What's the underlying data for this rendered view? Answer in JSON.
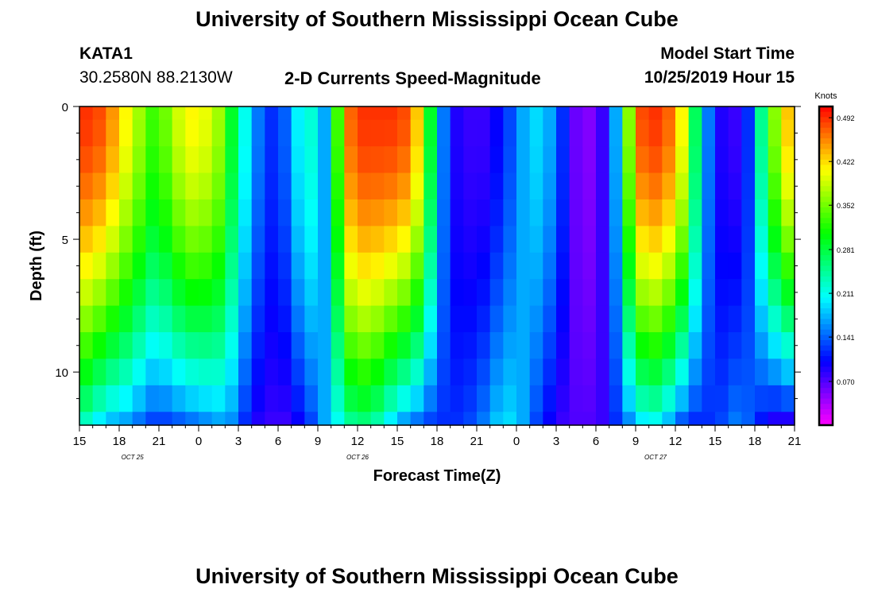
{
  "page": {
    "title_top": "University of Southern Mississippi Ocean Cube",
    "title_bottom": "University of Southern Mississippi Ocean Cube",
    "station": "KATA1",
    "coords": "30.2580N 88.2130W",
    "subtitle": "2-D Currents Speed-Magnitude",
    "model_label": "Model Start Time",
    "model_time": "10/25/2019 Hour 15"
  },
  "chart_data": {
    "type": "heatmap",
    "title": "2-D Currents Speed-Magnitude",
    "xlabel": "Forecast Time(Z)",
    "ylabel": "Depth (ft)",
    "colorbar_label": "Knots",
    "x_start_hour": 15,
    "x_hours_count": 54,
    "x_tick_labels": [
      "15",
      "18",
      "21",
      "0",
      "3",
      "6",
      "9",
      "12",
      "15",
      "18",
      "21",
      "0",
      "3",
      "6",
      "9",
      "12",
      "15",
      "18",
      "21"
    ],
    "date_labels": [
      {
        "label": "OCT 25",
        "hour": 19
      },
      {
        "label": "OCT 26",
        "hour": 36
      },
      {
        "label": "OCT 27",
        "hour": 58.5
      }
    ],
    "y_ticks": [
      0,
      5,
      10
    ],
    "ylim": [
      0,
      12
    ],
    "colorbar_ticks": [
      0.492,
      0.422,
      0.352,
      0.281,
      0.211,
      0.141,
      0.07
    ],
    "value_range": [
      0.0,
      0.51
    ],
    "depths": [
      0,
      1,
      2,
      3,
      4,
      5,
      6,
      7,
      8,
      9,
      10,
      11,
      12
    ],
    "surface_speed": [
      0.49,
      0.48,
      0.45,
      0.41,
      0.37,
      0.33,
      0.35,
      0.39,
      0.41,
      0.4,
      0.37,
      0.29,
      0.21,
      0.15,
      0.12,
      0.14,
      0.2,
      0.22,
      0.17,
      0.33,
      0.47,
      0.49,
      0.49,
      0.49,
      0.48,
      0.43,
      0.29,
      0.15,
      0.09,
      0.08,
      0.08,
      0.1,
      0.13,
      0.17,
      0.19,
      0.17,
      0.12,
      0.06,
      0.05,
      0.08,
      0.17,
      0.36,
      0.48,
      0.49,
      0.47,
      0.41,
      0.27,
      0.15,
      0.09,
      0.08,
      0.12,
      0.25,
      0.36,
      0.43
    ],
    "bottom_speed": [
      0.23,
      0.2,
      0.18,
      0.17,
      0.15,
      0.13,
      0.13,
      0.14,
      0.15,
      0.16,
      0.17,
      0.16,
      0.12,
      0.09,
      0.08,
      0.08,
      0.1,
      0.13,
      0.17,
      0.21,
      0.25,
      0.26,
      0.24,
      0.2,
      0.17,
      0.15,
      0.13,
      0.12,
      0.12,
      0.13,
      0.15,
      0.18,
      0.19,
      0.17,
      0.13,
      0.1,
      0.08,
      0.07,
      0.07,
      0.08,
      0.12,
      0.16,
      0.2,
      0.21,
      0.18,
      0.14,
      0.12,
      0.12,
      0.13,
      0.15,
      0.14,
      0.11,
      0.09,
      0.09
    ]
  }
}
